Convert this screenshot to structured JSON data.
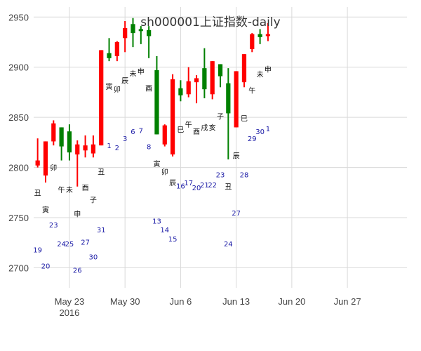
{
  "colors": {
    "up": "#ff0000",
    "down": "#008000",
    "grid": "#d9d9d9",
    "gz_text": "#111111",
    "day_text": "#1a1aa6"
  },
  "chart_data": {
    "type": "candlestick",
    "title": "sh000001上证指数-daily",
    "ylim": [
      2680,
      2960
    ],
    "yticks": [
      2700,
      2750,
      2800,
      2850,
      2900,
      2950
    ],
    "xticks": [
      {
        "date": "2016-05-23",
        "label": "May 23",
        "sublabel": "2016"
      },
      {
        "date": "2016-05-30",
        "label": "May 30"
      },
      {
        "date": "2016-06-06",
        "label": "Jun 6"
      },
      {
        "date": "2016-06-13",
        "label": "Jun 13"
      },
      {
        "date": "2016-06-20",
        "label": "Jun 20"
      },
      {
        "date": "2016-06-27",
        "label": "Jun 27"
      }
    ],
    "xlim": [
      "2016-05-18 12:00",
      "2016-07-04 12:00"
    ],
    "candles": [
      {
        "date": "2016-05-19",
        "open": 2802,
        "close": 2807,
        "high": 2829,
        "low": 2800
      },
      {
        "date": "2016-05-20",
        "open": 2792,
        "close": 2826,
        "high": 2826,
        "low": 2785
      },
      {
        "date": "2016-05-21",
        "open": 2826,
        "close": 2844,
        "high": 2847,
        "low": 2822
      },
      {
        "date": "2016-05-22",
        "open": 2840,
        "close": 2821,
        "high": 2840,
        "low": 2807
      },
      {
        "date": "2016-05-23",
        "open": 2836,
        "close": 2815,
        "high": 2843,
        "low": 2807
      },
      {
        "date": "2016-05-24",
        "open": 2813,
        "close": 2823,
        "high": 2827,
        "low": 2781
      },
      {
        "date": "2016-05-25",
        "open": 2817,
        "close": 2822,
        "high": 2832,
        "low": 2810
      },
      {
        "date": "2016-05-26",
        "open": 2814,
        "close": 2823,
        "high": 2832,
        "low": 2810
      },
      {
        "date": "2016-05-27",
        "open": 2822,
        "close": 2917,
        "high": 2917,
        "low": 2822
      },
      {
        "date": "2016-05-28",
        "open": 2914,
        "close": 2909,
        "high": 2929,
        "low": 2906
      },
      {
        "date": "2016-05-29",
        "open": 2911,
        "close": 2925,
        "high": 2926,
        "low": 2906
      },
      {
        "date": "2016-05-30",
        "open": 2929,
        "close": 2939,
        "high": 2946,
        "low": 2915
      },
      {
        "date": "2016-05-31",
        "open": 2943,
        "close": 2934,
        "high": 2949,
        "low": 2920
      },
      {
        "date": "2016-06-01",
        "open": 2938,
        "close": 2936,
        "high": 2941,
        "low": 2923
      },
      {
        "date": "2016-06-02",
        "open": 2937,
        "close": 2931,
        "high": 2941,
        "low": 2909
      },
      {
        "date": "2016-06-03",
        "open": 2897,
        "close": 2833,
        "high": 2911,
        "low": 2833
      },
      {
        "date": "2016-06-04",
        "open": 2823,
        "close": 2842,
        "high": 2843,
        "low": 2821
      },
      {
        "date": "2016-06-05",
        "open": 2813,
        "close": 2888,
        "high": 2893,
        "low": 2811
      },
      {
        "date": "2016-06-06",
        "open": 2879,
        "close": 2872,
        "high": 2887,
        "low": 2866
      },
      {
        "date": "2016-06-07",
        "open": 2873,
        "close": 2886,
        "high": 2900,
        "low": 2870
      },
      {
        "date": "2016-06-08",
        "open": 2885,
        "close": 2889,
        "high": 2892,
        "low": 2864
      },
      {
        "date": "2016-06-09",
        "open": 2899,
        "close": 2878,
        "high": 2919,
        "low": 2869
      },
      {
        "date": "2016-06-10",
        "open": 2873,
        "close": 2906,
        "high": 2906,
        "low": 2868
      },
      {
        "date": "2016-06-11",
        "open": 2903,
        "close": 2891,
        "high": 2903,
        "low": 2880
      },
      {
        "date": "2016-06-12",
        "open": 2884,
        "close": 2854,
        "high": 2899,
        "low": 2808
      },
      {
        "date": "2016-06-13",
        "open": 2840,
        "close": 2896,
        "high": 2896,
        "low": 2840
      },
      {
        "date": "2016-06-14",
        "open": 2885,
        "close": 2913,
        "high": 2913,
        "low": 2880
      },
      {
        "date": "2016-06-15",
        "open": 2918,
        "close": 2933,
        "high": 2934,
        "low": 2915
      },
      {
        "date": "2016-06-16",
        "open": 2933,
        "close": 2930,
        "high": 2938,
        "low": 2923
      },
      {
        "date": "2016-06-17",
        "open": 2931,
        "close": 2933,
        "high": 2944,
        "low": 2926
      }
    ],
    "ganzhi_labels": [
      {
        "date": "2016-05-19",
        "text": "丑",
        "y": 2775
      },
      {
        "date": "2016-05-20",
        "text": "寅",
        "y": 2758
      },
      {
        "date": "2016-05-21",
        "text": "卯",
        "y": 2800
      },
      {
        "date": "2016-05-22",
        "text": "午",
        "y": 2778
      },
      {
        "date": "2016-05-23",
        "text": "未",
        "y": 2778
      },
      {
        "date": "2016-05-24",
        "text": "申",
        "y": 2754
      },
      {
        "date": "2016-05-25",
        "text": "酉",
        "y": 2780
      },
      {
        "date": "2016-05-26",
        "text": "子",
        "y": 2768
      },
      {
        "date": "2016-05-27",
        "text": "丑",
        "y": 2796
      },
      {
        "date": "2016-05-28",
        "text": "寅",
        "y": 2881
      },
      {
        "date": "2016-05-29",
        "text": "卯",
        "y": 2878
      },
      {
        "date": "2016-05-30",
        "text": "辰",
        "y": 2887
      },
      {
        "date": "2016-05-31",
        "text": "未",
        "y": 2894
      },
      {
        "date": "2016-06-01",
        "text": "申",
        "y": 2896
      },
      {
        "date": "2016-06-02",
        "text": "酉",
        "y": 2879
      },
      {
        "date": "2016-06-03",
        "text": "寅",
        "y": 2804
      },
      {
        "date": "2016-06-04",
        "text": "卯",
        "y": 2796
      },
      {
        "date": "2016-06-05",
        "text": "辰",
        "y": 2785
      },
      {
        "date": "2016-06-06",
        "text": "巳",
        "y": 2838
      },
      {
        "date": "2016-06-07",
        "text": "午",
        "y": 2843
      },
      {
        "date": "2016-06-08",
        "text": "酉",
        "y": 2836
      },
      {
        "date": "2016-06-09",
        "text": "戌",
        "y": 2840
      },
      {
        "date": "2016-06-10",
        "text": "亥",
        "y": 2840
      },
      {
        "date": "2016-06-11",
        "text": "子",
        "y": 2851
      },
      {
        "date": "2016-06-12",
        "text": "丑",
        "y": 2781
      },
      {
        "date": "2016-06-13",
        "text": "辰",
        "y": 2812
      },
      {
        "date": "2016-06-14",
        "text": "巳",
        "y": 2849
      },
      {
        "date": "2016-06-15",
        "text": "午",
        "y": 2877
      },
      {
        "date": "2016-06-16",
        "text": "未",
        "y": 2893
      },
      {
        "date": "2016-06-17",
        "text": "申",
        "y": 2898
      }
    ],
    "day_labels": [
      {
        "date": "2016-05-19",
        "text": "19",
        "y": 2718
      },
      {
        "date": "2016-05-20",
        "text": "20",
        "y": 2702
      },
      {
        "date": "2016-05-21",
        "text": "23",
        "y": 2743
      },
      {
        "date": "2016-05-22",
        "text": "24",
        "y": 2724
      },
      {
        "date": "2016-05-23",
        "text": "25",
        "y": 2724
      },
      {
        "date": "2016-05-24",
        "text": "26",
        "y": 2698
      },
      {
        "date": "2016-05-25",
        "text": "27",
        "y": 2726
      },
      {
        "date": "2016-05-26",
        "text": "30",
        "y": 2711
      },
      {
        "date": "2016-05-27",
        "text": "31",
        "y": 2738
      },
      {
        "date": "2016-05-28",
        "text": "1",
        "y": 2822
      },
      {
        "date": "2016-05-29",
        "text": "2",
        "y": 2820
      },
      {
        "date": "2016-05-30",
        "text": "3",
        "y": 2829
      },
      {
        "date": "2016-05-31",
        "text": "6",
        "y": 2836
      },
      {
        "date": "2016-06-01",
        "text": "7",
        "y": 2837
      },
      {
        "date": "2016-06-02",
        "text": "8",
        "y": 2821
      },
      {
        "date": "2016-06-03",
        "text": "13",
        "y": 2747
      },
      {
        "date": "2016-06-04",
        "text": "14",
        "y": 2738
      },
      {
        "date": "2016-06-05",
        "text": "15",
        "y": 2729
      },
      {
        "date": "2016-06-06",
        "text": "16",
        "y": 2782
      },
      {
        "date": "2016-06-07",
        "text": "17",
        "y": 2785
      },
      {
        "date": "2016-06-08",
        "text": "20",
        "y": 2780
      },
      {
        "date": "2016-06-09",
        "text": "21",
        "y": 2783
      },
      {
        "date": "2016-06-10",
        "text": "22",
        "y": 2783
      },
      {
        "date": "2016-06-11",
        "text": "23",
        "y": 2793
      },
      {
        "date": "2016-06-12",
        "text": "24",
        "y": 2724
      },
      {
        "date": "2016-06-13",
        "text": "27",
        "y": 2755
      },
      {
        "date": "2016-06-14",
        "text": "28",
        "y": 2793
      },
      {
        "date": "2016-06-15",
        "text": "29",
        "y": 2829
      },
      {
        "date": "2016-06-16",
        "text": "30",
        "y": 2836
      },
      {
        "date": "2016-06-17",
        "text": "1",
        "y": 2839
      }
    ]
  }
}
